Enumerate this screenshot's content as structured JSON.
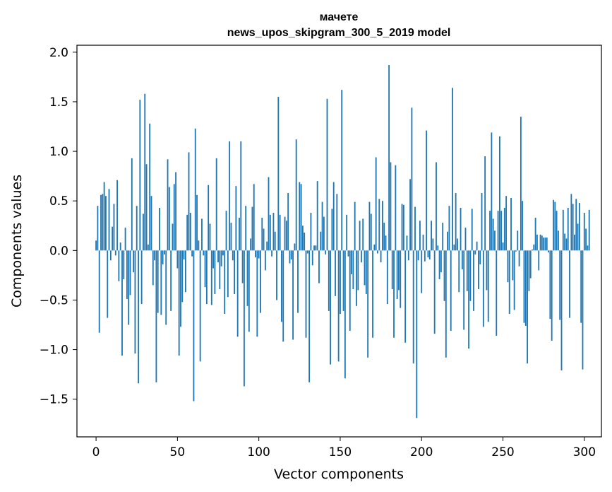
{
  "chart_data": {
    "type": "bar",
    "title": "мачете",
    "subtitle": "news_upos_skipgram_300_5_2019 model",
    "xlabel": "Vector components",
    "ylabel": "Components values",
    "xlim": [
      -11.75,
      310.5
    ],
    "ylim": [
      -1.88,
      2.07
    ],
    "xticks": [
      0,
      50,
      100,
      150,
      200,
      250,
      300
    ],
    "xtick_labels": [
      "0",
      "50",
      "100",
      "150",
      "200",
      "250",
      "300"
    ],
    "yticks": [
      2.0,
      1.5,
      1.0,
      0.5,
      0.0,
      -0.5,
      -1.0,
      -1.5
    ],
    "ytick_labels": [
      "2.0",
      "1.5",
      "1.0",
      "0.5",
      "0.0",
      "−0.5",
      "−1.0",
      "−1.5"
    ],
    "bar_color": "#1f77b4",
    "grid": false,
    "values": [
      0.1,
      0.45,
      -0.83,
      0.56,
      0.57,
      0.69,
      0.55,
      -0.68,
      0.62,
      -0.1,
      0.24,
      0.47,
      -0.05,
      0.71,
      -0.31,
      0.08,
      -1.06,
      -0.29,
      0.23,
      -0.49,
      -0.75,
      -0.45,
      0.93,
      -0.22,
      -1.04,
      0.45,
      -1.34,
      1.52,
      -0.54,
      0.37,
      1.58,
      0.87,
      0.06,
      1.28,
      0.55,
      -0.35,
      -0.1,
      -1.33,
      -0.63,
      0.43,
      -0.65,
      -0.14,
      -0.04,
      -0.75,
      0.92,
      0.64,
      -0.61,
      0.27,
      0.67,
      0.79,
      -0.18,
      -1.06,
      -0.77,
      -0.52,
      -0.09,
      -0.42,
      0.36,
      0.99,
      0.38,
      -0.06,
      -1.52,
      1.23,
      0.56,
      0.1,
      -1.12,
      0.32,
      -0.05,
      -0.37,
      -0.54,
      0.66,
      0.27,
      -0.55,
      -0.18,
      -0.44,
      0.93,
      -0.12,
      -0.39,
      -0.16,
      -0.05,
      -0.64,
      0.4,
      -0.47,
      1.1,
      0.28,
      -0.1,
      -0.44,
      0.65,
      -0.87,
      0.33,
      1.1,
      -0.33,
      -1.37,
      0.45,
      -0.56,
      -0.82,
      0.12,
      0.44,
      0.67,
      -0.07,
      -0.87,
      -0.08,
      -0.63,
      0.33,
      0.22,
      -0.2,
      0.09,
      0.74,
      0.36,
      -0.06,
      0.38,
      0.19,
      -0.5,
      1.55,
      0.36,
      -0.72,
      -0.92,
      0.34,
      0.3,
      0.58,
      -0.13,
      -0.09,
      -0.9,
      0.07,
      1.12,
      -0.63,
      0.69,
      0.67,
      0.25,
      0.18,
      -0.88,
      -0.03,
      -1.33,
      0.38,
      -0.15,
      0.05,
      0.05,
      0.7,
      -0.33,
      0.19,
      0.49,
      0.34,
      -0.04,
      1.53,
      -0.61,
      -1.15,
      0.42,
      0.69,
      -0.46,
      0.57,
      -1.12,
      -0.64,
      1.62,
      -0.61,
      -1.29,
      0.36,
      -0.06,
      -0.81,
      -0.24,
      -0.39,
      0.49,
      -0.56,
      -0.4,
      0.3,
      -0.12,
      0.32,
      -0.35,
      -0.44,
      -1.08,
      0.49,
      0.37,
      -0.88,
      0.06,
      0.94,
      -0.03,
      0.52,
      -0.12,
      0.5,
      0.28,
      0.15,
      -0.54,
      1.87,
      0.89,
      -0.39,
      -0.88,
      0.86,
      -0.49,
      -0.4,
      -0.58,
      0.47,
      0.46,
      -0.93,
      0.15,
      -0.1,
      0.72,
      1.44,
      -1.14,
      0.44,
      -1.69,
      -0.1,
      0.3,
      -0.43,
      0.16,
      -0.11,
      1.21,
      -0.07,
      -0.09,
      0.3,
      0.12,
      -0.84,
      0.89,
      0.05,
      -0.29,
      -0.22,
      0.28,
      -0.51,
      -1.08,
      0.19,
      0.45,
      -0.81,
      1.64,
      0.06,
      0.58,
      0.12,
      -0.42,
      0.43,
      -0.19,
      -0.8,
      0.23,
      -0.41,
      -0.99,
      -0.51,
      0.42,
      -0.61,
      -0.04,
      0.09,
      -0.39,
      -0.14,
      0.58,
      -0.77,
      0.95,
      -0.4,
      -0.72,
      0.4,
      1.19,
      0.32,
      0.2,
      -0.86,
      0.4,
      1.15,
      0.4,
      0.08,
      0.43,
      0.55,
      -0.32,
      -0.64,
      0.53,
      -0.3,
      -0.6,
      -0.01,
      0.2,
      -0.16,
      1.35,
      0.5,
      -0.73,
      -0.76,
      -1.14,
      -0.41,
      -0.28,
      0.01,
      0.06,
      0.33,
      0.16,
      -0.2,
      0.16,
      0.15,
      0.13,
      0.13,
      0.13,
      -0.02,
      -0.69,
      -0.91,
      0.51,
      0.49,
      0.4,
      0.2,
      -0.7,
      -1.21,
      0.41,
      0.17,
      0.12,
      0.43,
      -0.68,
      0.57,
      0.47,
      0.16,
      0.52,
      0.27,
      0.48,
      -0.73,
      -1.2,
      0.38,
      0.22,
      0.05,
      0.41
    ]
  }
}
